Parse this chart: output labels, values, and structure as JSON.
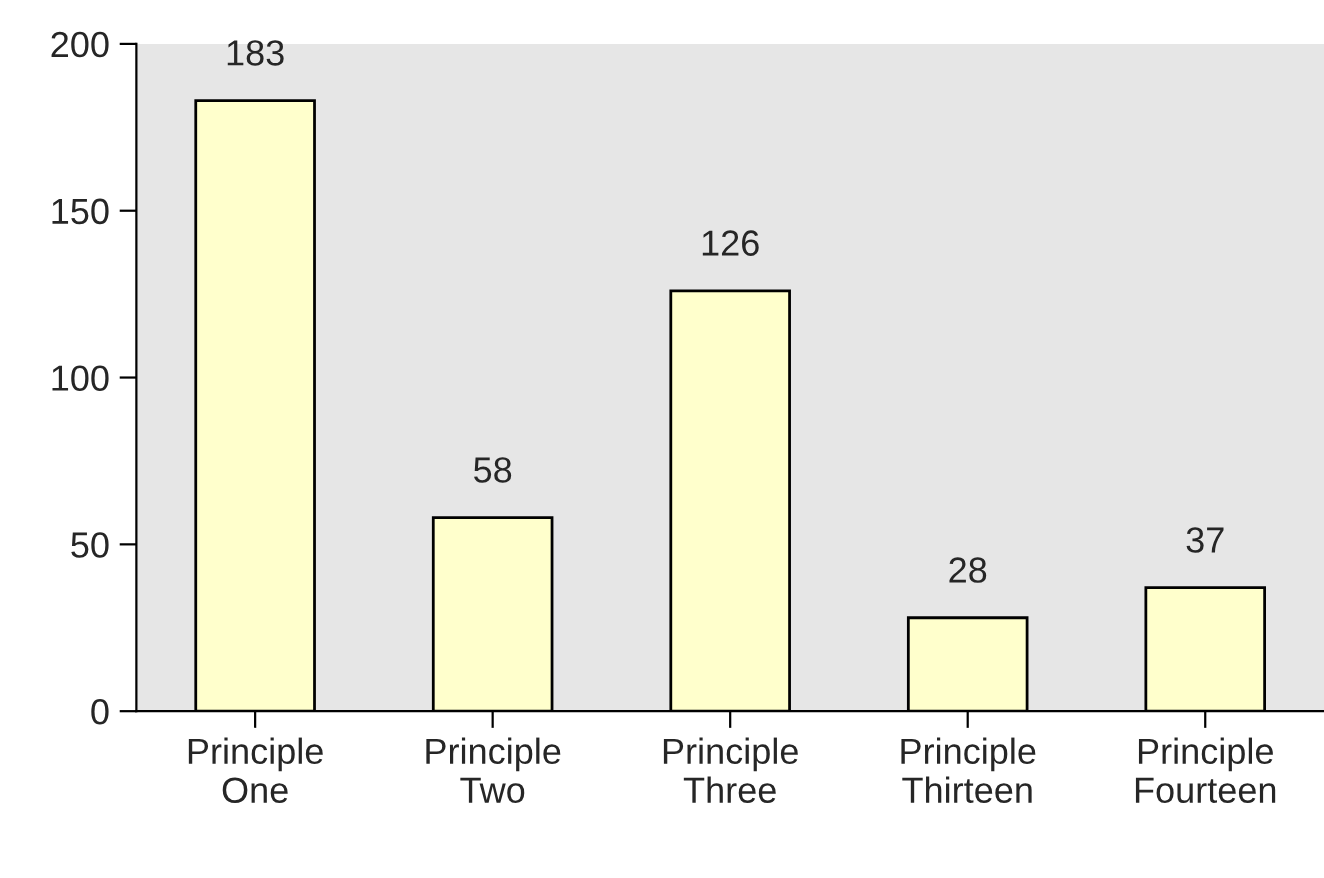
{
  "chart_data": {
    "type": "bar",
    "categories": [
      "Principle\nOne",
      "Principle\nTwo",
      "Principle\nThree",
      "Principle\nThirteen",
      "Principle\nFourteen"
    ],
    "values": [
      183,
      58,
      126,
      28,
      37
    ],
    "color": "#ffffcc",
    "ylim": [
      0,
      200
    ],
    "yticks": [
      0,
      50,
      100,
      150,
      200
    ],
    "data_labels": true,
    "grid": false,
    "legend": false
  }
}
